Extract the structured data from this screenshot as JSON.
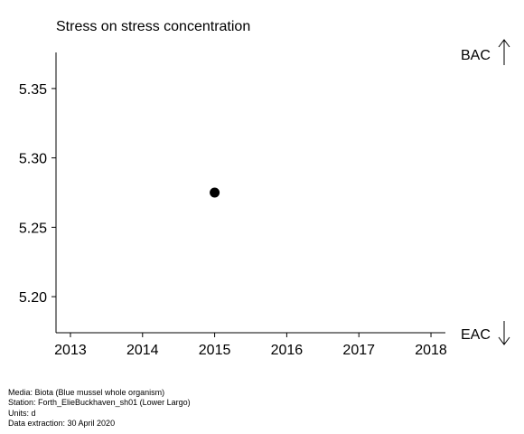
{
  "chart_data": {
    "type": "scatter",
    "title": "Stress on stress concentration",
    "xlabel": "",
    "ylabel": "",
    "x_ticks": [
      2013,
      2014,
      2015,
      2016,
      2017,
      2018
    ],
    "y_ticks": [
      "5.20",
      "5.25",
      "5.30",
      "5.35"
    ],
    "xlim": [
      2012.8,
      2018.2
    ],
    "ylim": [
      5.174,
      5.376
    ],
    "points": [
      {
        "x": 2015,
        "y": 5.275
      }
    ],
    "point_color": "#000000",
    "grid": false,
    "assessment_labels": {
      "upper": "BAC",
      "lower": "EAC"
    }
  },
  "footer": {
    "media": "Media: Biota (Blue mussel whole organism)",
    "station": "Station: Forth_ElieBuckhaven_sh01 (Lower Largo)",
    "units": "Units:  d",
    "extraction": "Data extraction: 30 April 2020"
  }
}
